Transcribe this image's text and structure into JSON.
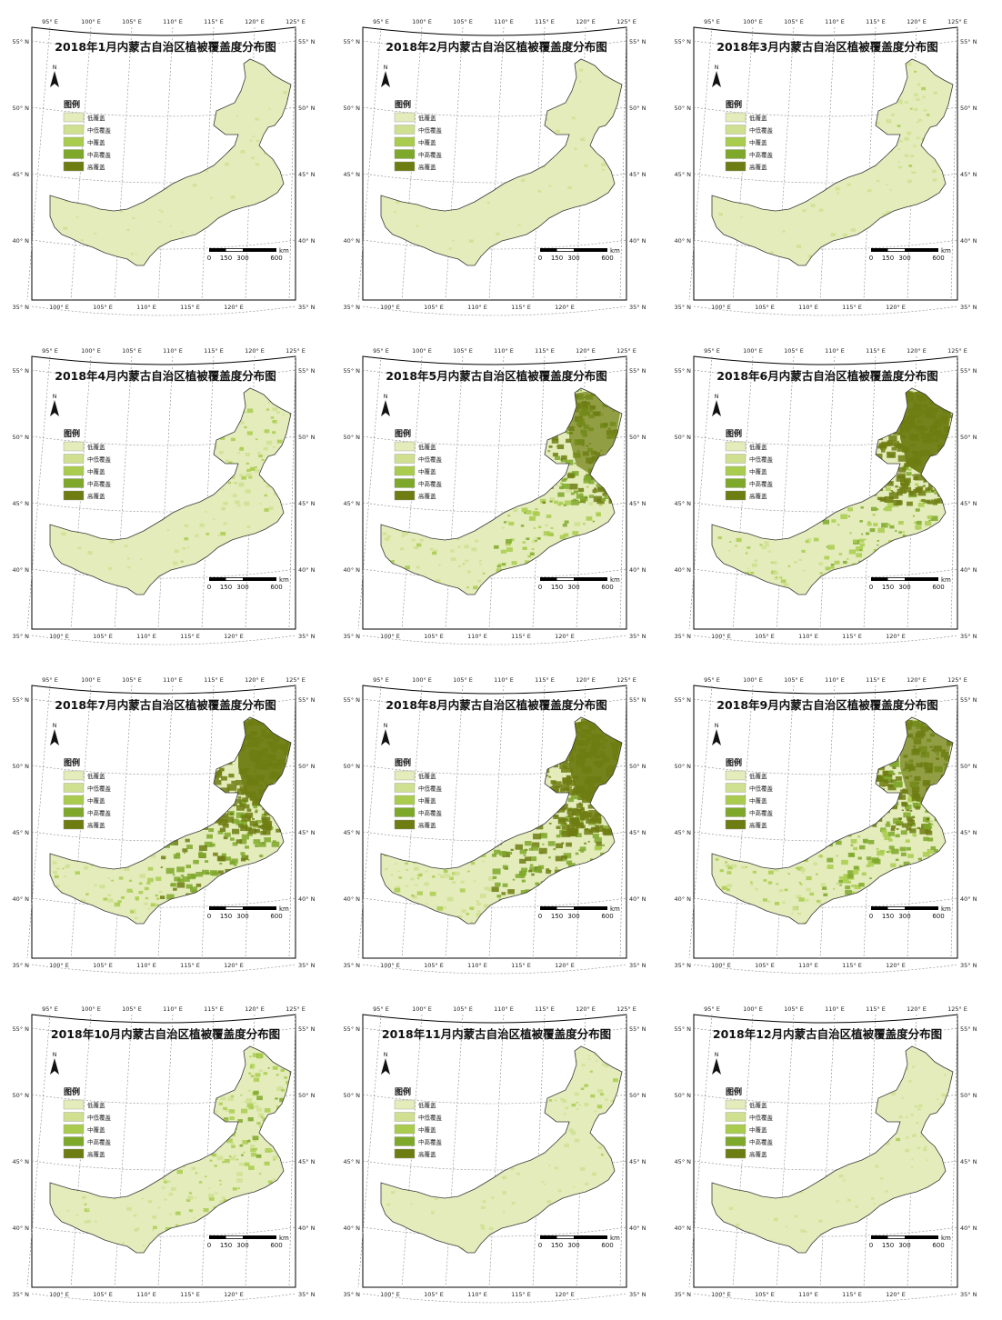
{
  "colors": {
    "low": "#e3ecba",
    "mid_low": "#cfe090",
    "mid": "#a9cc4e",
    "mid_high": "#7ea82a",
    "high": "#6e7d12",
    "outline": "#3a3a3a",
    "frame": "#000000",
    "graticule": "#888888"
  },
  "common": {
    "legend_title": "图例",
    "legend_items": [
      {
        "label": "低覆盖",
        "color": "#e3ecba"
      },
      {
        "label": "中低覆盖",
        "color": "#cfe090"
      },
      {
        "label": "中覆盖",
        "color": "#a9cc4e"
      },
      {
        "label": "中高覆盖",
        "color": "#7ea82a"
      },
      {
        "label": "高覆盖",
        "color": "#6e7d12"
      }
    ],
    "north_label": "N",
    "scale_labels": [
      "0",
      "150",
      "300",
      "600"
    ],
    "scale_unit": "km",
    "lon_top": [
      "95° E",
      "100° E",
      "105° E",
      "110° E",
      "115° E",
      "120° E",
      "125° E"
    ],
    "lon_bottom": [
      "100° E",
      "105° E",
      "110° E",
      "115° E",
      "120° E"
    ],
    "lat_left": [
      "55° N",
      "50° N",
      "45° N",
      "40° N",
      "35° N"
    ],
    "lat_right": [
      "55° N",
      "50° N",
      "45° N",
      "40° N",
      "35° N"
    ]
  },
  "maps": [
    {
      "title": "2018年1月内蒙古自治区植被覆盖度分布图",
      "month": 1,
      "greenness": [
        0.02,
        0.02,
        0.02
      ]
    },
    {
      "title": "2018年2月内蒙古自治区植被覆盖度分布图",
      "month": 2,
      "greenness": [
        0.02,
        0.02,
        0.02
      ]
    },
    {
      "title": "2018年3月内蒙古自治区植被覆盖度分布图",
      "month": 3,
      "greenness": [
        0.05,
        0.1,
        0.15
      ]
    },
    {
      "title": "2018年4月内蒙古自治区植被覆盖度分布图",
      "month": 4,
      "greenness": [
        0.08,
        0.15,
        0.25
      ]
    },
    {
      "title": "2018年5月内蒙古自治区植被覆盖度分布图",
      "month": 5,
      "greenness": [
        0.15,
        0.4,
        0.75
      ]
    },
    {
      "title": "2018年6月内蒙古自治区植被覆盖度分布图",
      "month": 6,
      "greenness": [
        0.2,
        0.5,
        0.95
      ]
    },
    {
      "title": "2018年7月内蒙古自治区植被覆盖度分布图",
      "month": 7,
      "greenness": [
        0.3,
        0.7,
        1.0
      ]
    },
    {
      "title": "2018年8月内蒙古自治区植被覆盖度分布图",
      "month": 8,
      "greenness": [
        0.3,
        0.7,
        1.0
      ]
    },
    {
      "title": "2018年9月内蒙古自治区植被覆盖度分布图",
      "month": 9,
      "greenness": [
        0.25,
        0.55,
        0.85
      ]
    },
    {
      "title": "2018年10月内蒙古自治区植被覆盖度分布图",
      "month": 10,
      "greenness": [
        0.12,
        0.3,
        0.4
      ]
    },
    {
      "title": "2018年11月内蒙古自治区植被覆盖度分布图",
      "month": 11,
      "greenness": [
        0.05,
        0.1,
        0.18
      ]
    },
    {
      "title": "2018年12月内蒙古自治区植被覆盖度分布图",
      "month": 12,
      "greenness": [
        0.03,
        0.06,
        0.12
      ]
    }
  ]
}
